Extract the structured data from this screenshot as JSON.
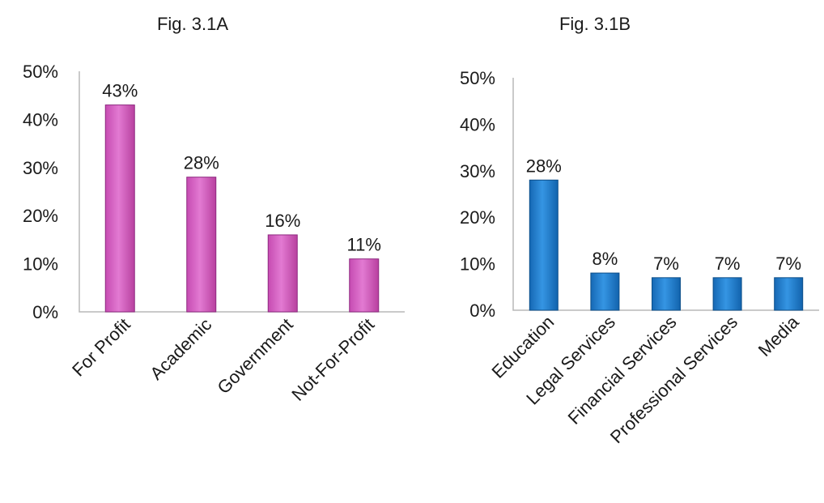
{
  "chart_data": [
    {
      "type": "bar",
      "title": "Fig. 3.1A",
      "categories": [
        "For Profit",
        "Academic",
        "Government",
        "Not-For-Profit"
      ],
      "values": [
        43,
        28,
        16,
        11
      ],
      "data_labels": [
        "43%",
        "28%",
        "16%",
        "11%"
      ],
      "y_ticks": [
        "0%",
        "10%",
        "20%",
        "30%",
        "40%",
        "50%"
      ],
      "ylim": [
        0,
        50
      ],
      "y_unit": "%",
      "grid": false,
      "legend": "none",
      "bar_color": "#d660c4",
      "bar_edge": "#8e2a80"
    },
    {
      "type": "bar",
      "title": "Fig. 3.1B",
      "categories": [
        "Education",
        "Legal Services",
        "Financial Services",
        "Professional Services",
        "Media"
      ],
      "values": [
        28,
        8,
        7,
        7,
        7
      ],
      "data_labels": [
        "28%",
        "8%",
        "7%",
        "7%",
        "7%"
      ],
      "y_ticks": [
        "0%",
        "10%",
        "20%",
        "30%",
        "40%",
        "50%"
      ],
      "ylim": [
        0,
        50
      ],
      "y_unit": "%",
      "grid": false,
      "legend": "none",
      "bar_color": "#1c7fd0",
      "bar_edge": "#0d4f8a"
    }
  ]
}
